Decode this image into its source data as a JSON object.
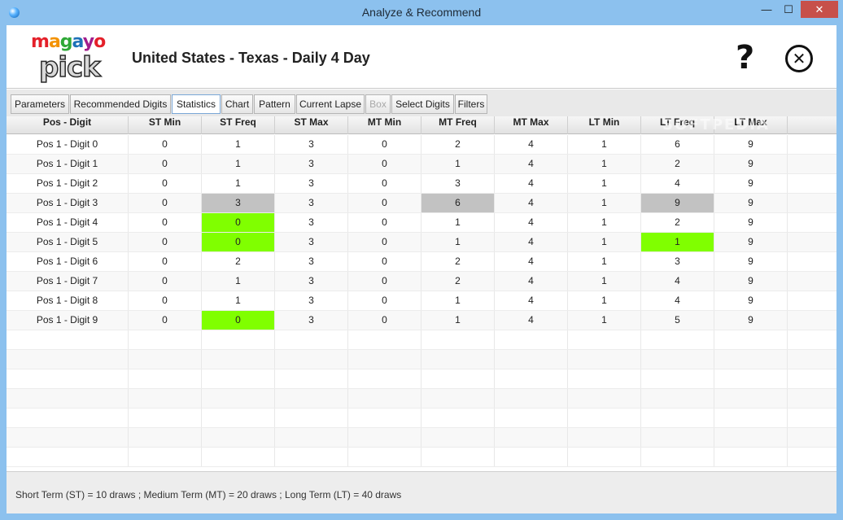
{
  "window": {
    "title": "Analyze & Recommend",
    "controls": {
      "minimize": "—",
      "maximize": "☐",
      "close": "✕"
    }
  },
  "header": {
    "logo_top": "magayo",
    "logo_bottom": "pick",
    "title": "United States - Texas - Daily 4 Day",
    "help_icon": "?",
    "close_icon": "✕"
  },
  "tabs": [
    {
      "label": "Parameters",
      "state": "normal"
    },
    {
      "label": "Recommended Digits",
      "state": "normal"
    },
    {
      "label": "Statistics",
      "state": "active"
    },
    {
      "label": "Chart",
      "state": "normal"
    },
    {
      "label": "Pattern",
      "state": "normal"
    },
    {
      "label": "Current Lapse",
      "state": "normal"
    },
    {
      "label": "Box",
      "state": "disabled"
    },
    {
      "label": "Select Digits",
      "state": "normal"
    },
    {
      "label": "Filters",
      "state": "normal"
    }
  ],
  "table": {
    "columns": [
      "Pos - Digit",
      "ST Min",
      "ST Freq",
      "ST Max",
      "MT Min",
      "MT Freq",
      "MT Max",
      "LT Min",
      "LT Freq",
      "LT Max"
    ],
    "rows": [
      [
        "Pos 1 - Digit 0",
        "0",
        "1",
        "3",
        "0",
        "2",
        "4",
        "1",
        "6",
        "9"
      ],
      [
        "Pos 1 - Digit 1",
        "0",
        "1",
        "3",
        "0",
        "1",
        "4",
        "1",
        "2",
        "9"
      ],
      [
        "Pos 1 - Digit 2",
        "0",
        "1",
        "3",
        "0",
        "3",
        "4",
        "1",
        "4",
        "9"
      ],
      [
        "Pos 1 - Digit 3",
        "0",
        "3",
        "3",
        "0",
        "6",
        "4",
        "1",
        "9",
        "9"
      ],
      [
        "Pos 1 - Digit 4",
        "0",
        "0",
        "3",
        "0",
        "1",
        "4",
        "1",
        "2",
        "9"
      ],
      [
        "Pos 1 - Digit 5",
        "0",
        "0",
        "3",
        "0",
        "1",
        "4",
        "1",
        "1",
        "9"
      ],
      [
        "Pos 1 - Digit 6",
        "0",
        "2",
        "3",
        "0",
        "2",
        "4",
        "1",
        "3",
        "9"
      ],
      [
        "Pos 1 - Digit 7",
        "0",
        "1",
        "3",
        "0",
        "2",
        "4",
        "1",
        "4",
        "9"
      ],
      [
        "Pos 1 - Digit 8",
        "0",
        "1",
        "3",
        "0",
        "1",
        "4",
        "1",
        "4",
        "9"
      ],
      [
        "Pos 1 - Digit 9",
        "0",
        "0",
        "3",
        "0",
        "1",
        "4",
        "1",
        "5",
        "9"
      ]
    ],
    "highlights": [
      {
        "row": 3,
        "col": 2,
        "color": "gray"
      },
      {
        "row": 3,
        "col": 5,
        "color": "gray"
      },
      {
        "row": 3,
        "col": 8,
        "color": "gray"
      },
      {
        "row": 4,
        "col": 2,
        "color": "green"
      },
      {
        "row": 5,
        "col": 2,
        "color": "green"
      },
      {
        "row": 5,
        "col": 8,
        "color": "green"
      },
      {
        "row": 9,
        "col": 2,
        "color": "green"
      }
    ],
    "empty_rows": 7
  },
  "watermark": "SOFTPEDIA",
  "footer": {
    "note": "Short Term (ST) = 10 draws ; Medium Term (MT) = 20 draws ; Long Term (LT) = 40 draws"
  },
  "colors": {
    "titlebar": "#8cc1ee",
    "close_button": "#c7504a",
    "highlight_gray": "#c2c2c2",
    "highlight_green": "#80ff00"
  }
}
